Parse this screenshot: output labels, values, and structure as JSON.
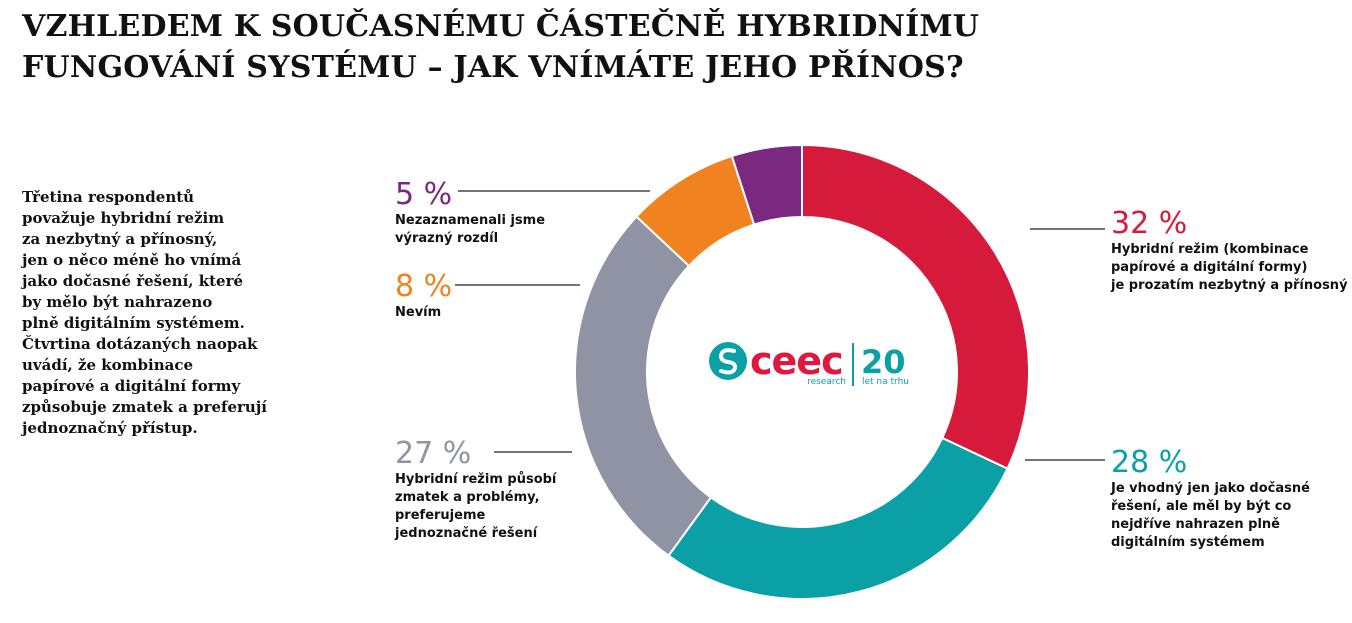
{
  "chart_data": {
    "type": "pie",
    "title_lines": [
      "VZHLEDEM K SOUČASNÉMU ČÁSTEČNĚ HYBRIDNÍMU",
      "FUNGOVÁNÍ SYSTÉMU – JAK VNÍMÁTE JEHO PŘÍNOS?"
    ],
    "slices": [
      {
        "id": "hybrid-necessary",
        "value": 32,
        "value_label": "32 %",
        "color": "#d61a3c",
        "label_lines": [
          "Hybridní režim (kombinace",
          "papírové a digitální formy)",
          "je prozatím nezbytný a přínosný"
        ]
      },
      {
        "id": "temporary",
        "value": 28,
        "value_label": "28 %",
        "color": "#0ba0a6",
        "label_lines": [
          "Je vhodný jen jako dočasné",
          "řešení, ale měl by být co",
          "nejdříve nahrazen plně",
          "digitálním systémem"
        ]
      },
      {
        "id": "confusion",
        "value": 27,
        "value_label": "27 %",
        "color": "#8f93a3",
        "label_lines": [
          "Hybridní režim působí",
          "zmatek a problémy,",
          "preferujeme",
          "jednoznačné řešení"
        ]
      },
      {
        "id": "dont-know",
        "value": 8,
        "value_label": "8 %",
        "color": "#f18220",
        "label_lines": [
          "Nevím"
        ]
      },
      {
        "id": "no-difference",
        "value": 5,
        "value_label": "5 %",
        "color": "#7b2880",
        "label_lines": [
          "Nezaznamenali jsme",
          "výrazný rozdíl"
        ]
      }
    ]
  },
  "intro_lines": [
    "Třetina respondentů",
    "považuje hybridní režim",
    "za nezbytný a přínosný,",
    "jen o něco méně ho vnímá",
    "jako dočasné řešení, které",
    "by mělo být nahrazeno",
    "plně digitálním systémem.",
    "Čtvrtina dotázaných naopak",
    "uvádí, že kombinace",
    "papírové a digitální formy",
    "způsobuje zmatek a preferují",
    "jednoznačný přístup."
  ],
  "logo": {
    "brand": "ceec",
    "sub": "research",
    "years": "20",
    "years_sub": "let na trhu",
    "brand_color": "#e0173f",
    "accent_color": "#0ba0a6"
  }
}
